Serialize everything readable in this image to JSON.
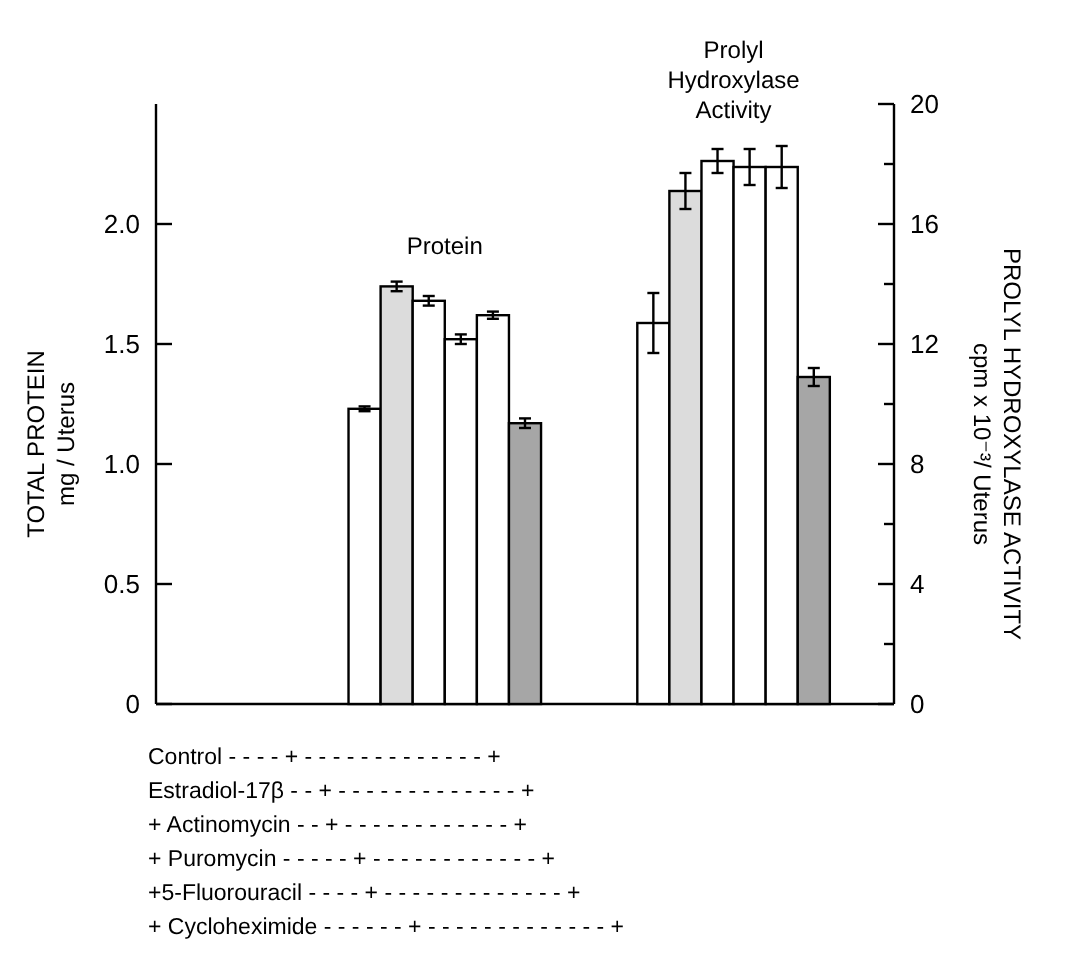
{
  "chart_data": {
    "type": "bar",
    "categories": [
      null,
      null,
      null,
      null,
      null,
      null,
      null,
      null,
      null,
      null,
      null,
      null,
      null,
      null,
      null,
      null,
      null,
      null,
      null,
      null,
      null,
      null,
      null
    ],
    "series": [
      {
        "name": "Protein",
        "axis": "y",
        "colors": [
          null,
          null,
          null,
          null,
          null,
          null,
          "#ffffff",
          "#dcdcdc",
          "#ffffff",
          "#ffffff",
          "#ffffff",
          "#a6a6a6",
          null,
          null,
          null,
          null,
          null,
          null,
          null,
          null,
          null,
          null,
          null
        ],
        "values": [
          null,
          null,
          null,
          null,
          null,
          null,
          1.23,
          1.74,
          1.68,
          1.52,
          1.62,
          1.17,
          null,
          null,
          null,
          null,
          null,
          null,
          null,
          null,
          null,
          null,
          null
        ],
        "errors": [
          null,
          null,
          null,
          null,
          null,
          null,
          0.01,
          0.02,
          0.02,
          0.02,
          0.015,
          0.02,
          null,
          null,
          null,
          null,
          null,
          null,
          null,
          null,
          null,
          null,
          null
        ]
      },
      {
        "name": "Prolyl Hydroxylase Activity",
        "axis": "y2",
        "colors": [
          null,
          null,
          null,
          null,
          null,
          null,
          null,
          null,
          null,
          null,
          null,
          null,
          null,
          null,
          null,
          "#ffffff",
          "#dcdcdc",
          "#ffffff",
          "#ffffff",
          "#ffffff",
          "#a6a6a6",
          null,
          null
        ],
        "values": [
          null,
          null,
          null,
          null,
          null,
          null,
          null,
          null,
          null,
          null,
          null,
          null,
          null,
          null,
          null,
          12.7,
          17.1,
          18.1,
          17.9,
          17.9,
          10.9,
          null,
          null
        ],
        "errors": [
          null,
          null,
          null,
          null,
          null,
          null,
          null,
          null,
          null,
          null,
          null,
          null,
          null,
          null,
          null,
          1.0,
          0.6,
          0.4,
          0.6,
          0.7,
          0.3,
          null,
          null
        ]
      }
    ],
    "ylabel": "TOTAL PROTEIN\nmg / Uterus",
    "y2label": "PROLYL HYDROXYLASE ACTIVITY\ncpm x 10⁻³/ Uterus",
    "ylim": [
      0,
      2.5
    ],
    "yticks": [
      0,
      0.5,
      {
        "value": 1,
        "label": "1.0"
      },
      1.5,
      {
        "value": 2,
        "label": "2.0"
      }
    ],
    "y2lim": [
      0,
      20
    ],
    "y2ticks": [
      0,
      {
        "value": 2,
        "label": null
      },
      4,
      {
        "value": 6,
        "label": null
      },
      8,
      {
        "value": 10,
        "label": null
      },
      12,
      {
        "value": 14,
        "label": null
      },
      16,
      {
        "value": 18,
        "label": null
      },
      20
    ],
    "annotations": [
      "Control - - - - + - - - - - - - - - - - - - +",
      "Estradiol-17β - - + - - - - - - - - - - - - - +",
      "+ Actinomycin  - - + - - - - - - - - - - - - +",
      "+ Puromycin - - - - - + - - - - - - - - - - - - +",
      "+5-Fluorouracil - - - - + - - - - - - - - - - - - - +",
      "+ Cycloheximide - - - - - - + - - - - - - - - - - - - - +"
    ]
  }
}
